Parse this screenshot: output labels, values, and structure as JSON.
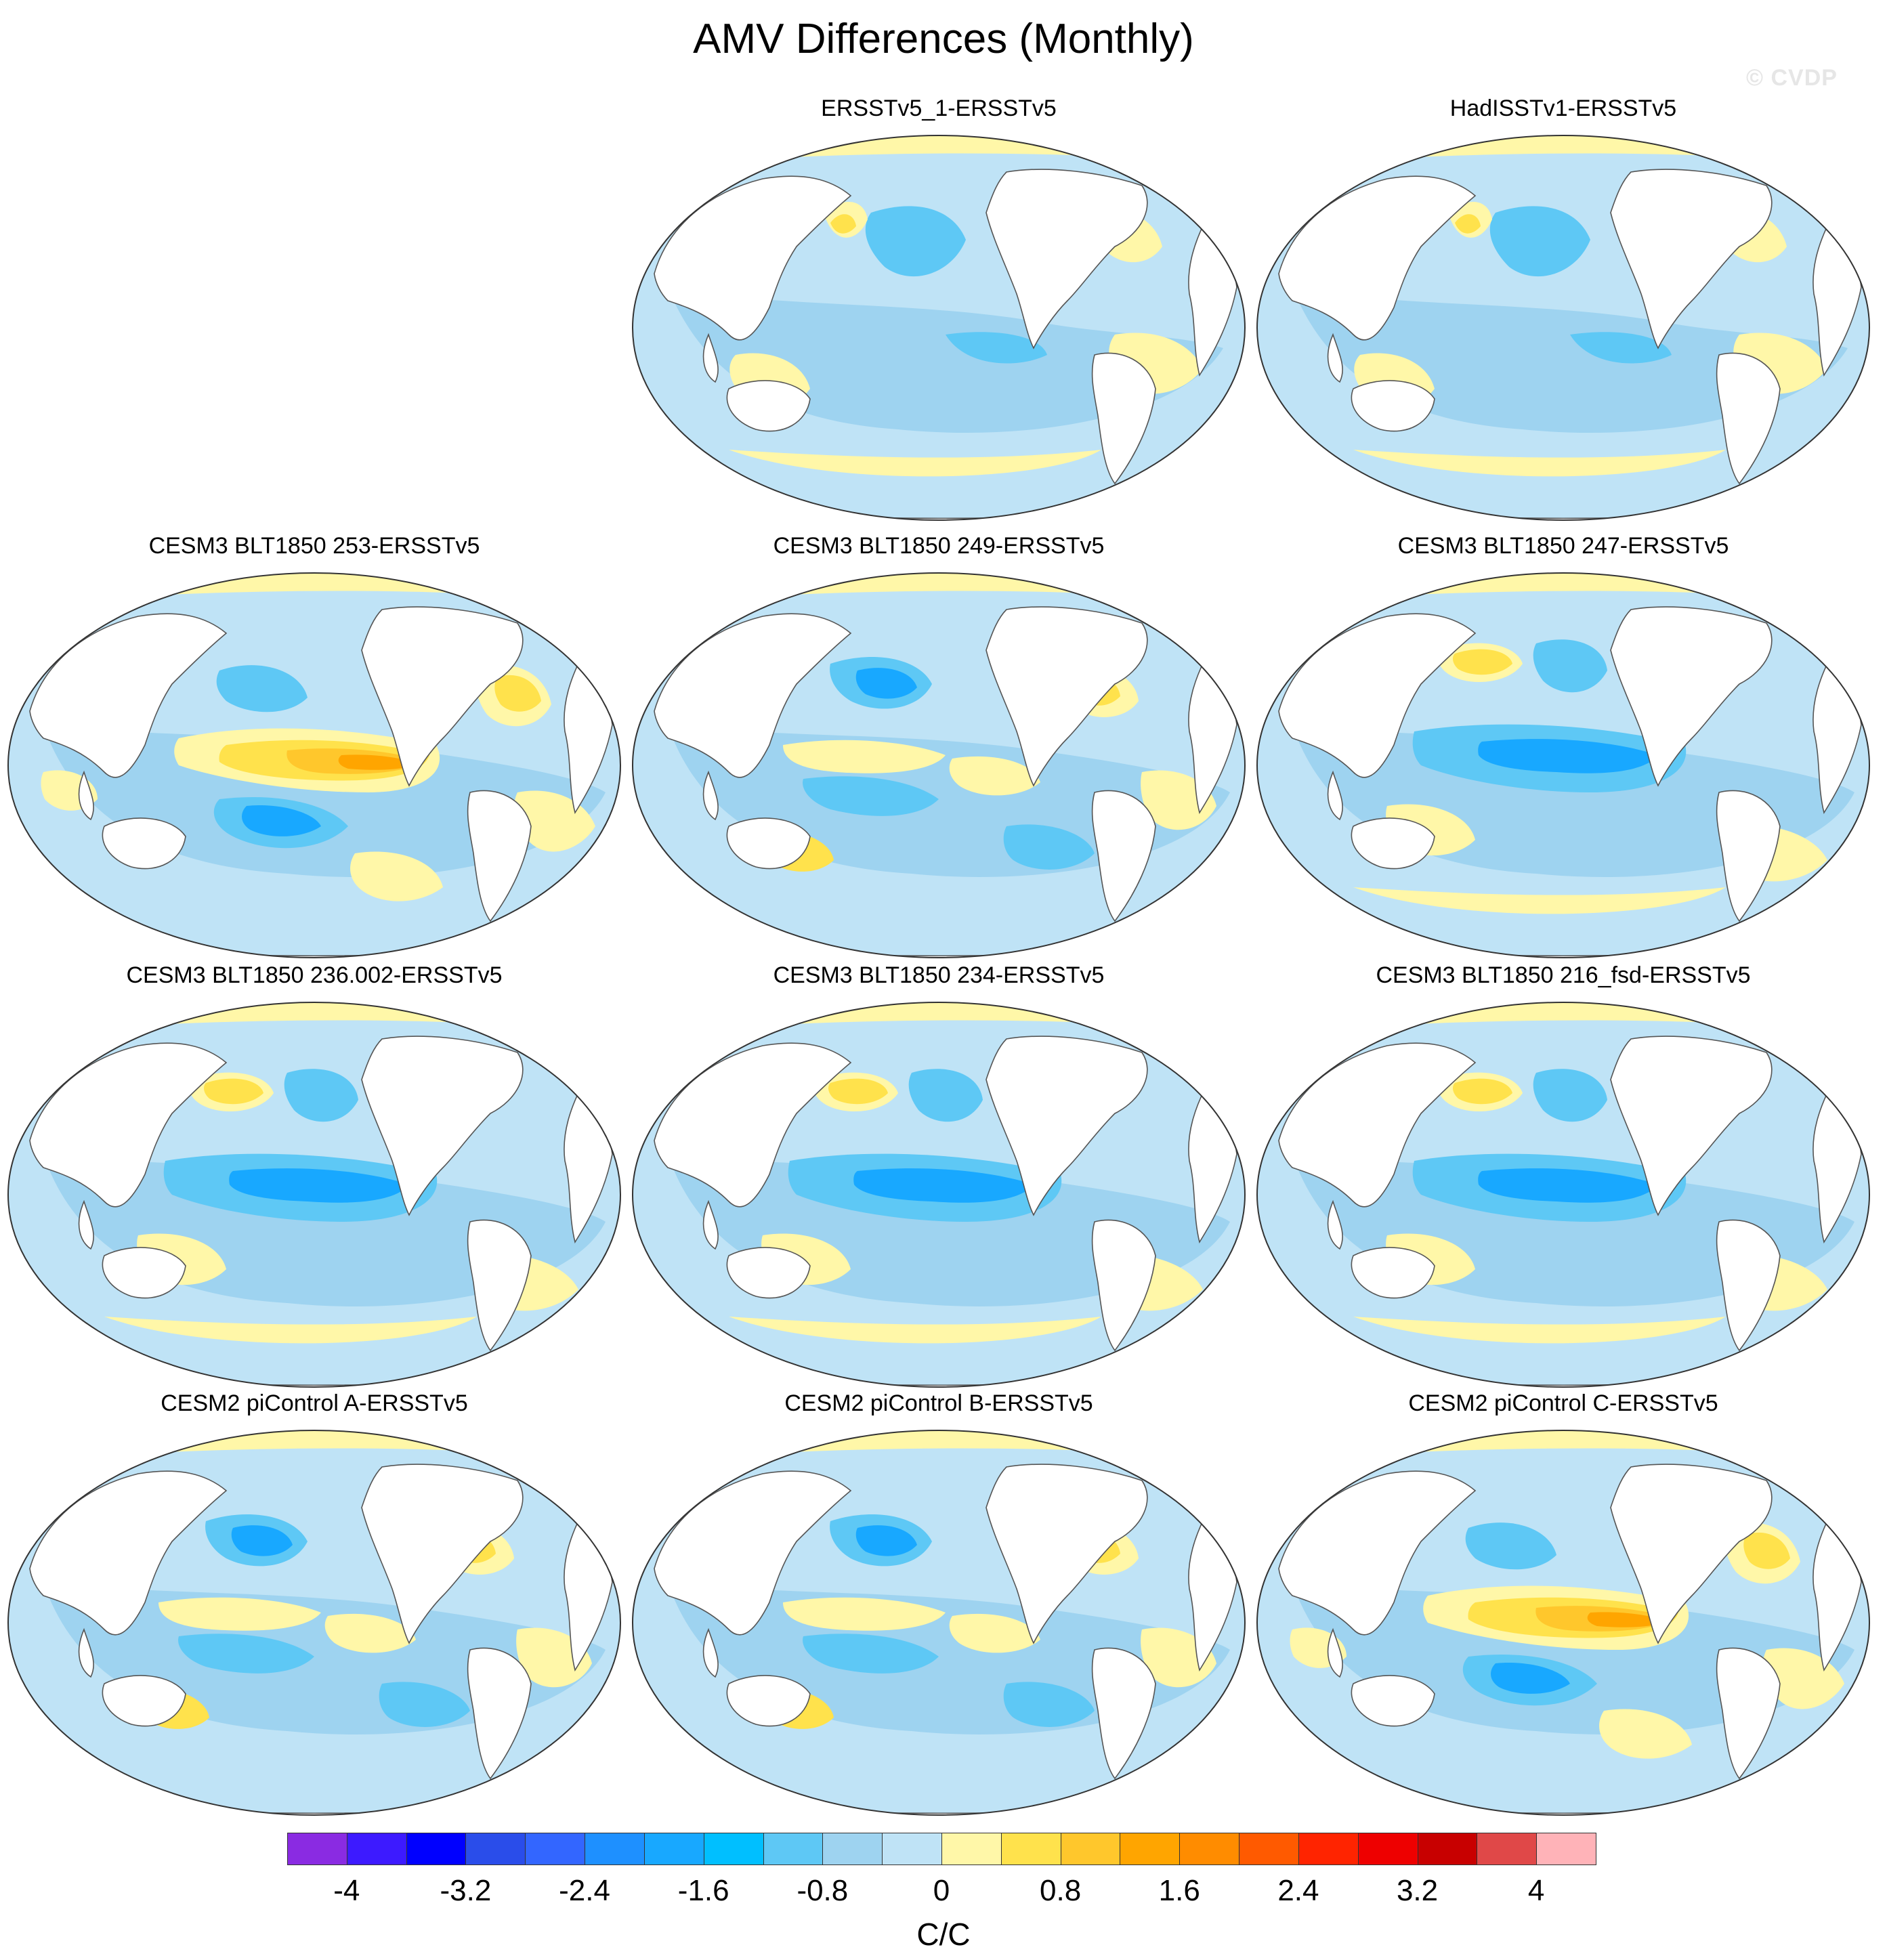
{
  "title": "AMV Differences (Monthly)",
  "watermark": "© CVDP",
  "panels": [
    {
      "title": "ERSSTv5_1-ERSSTv5",
      "row": 0,
      "col": 1,
      "regime": "mild"
    },
    {
      "title": "HadISSTv1-ERSSTv5",
      "row": 0,
      "col": 2,
      "regime": "mild"
    },
    {
      "title": "CESM3 BLT1850 253-ERSSTv5",
      "row": 1,
      "col": 0,
      "regime": "warm-pacific"
    },
    {
      "title": "CESM3 BLT1850 249-ERSSTv5",
      "row": 1,
      "col": 1,
      "regime": "mixed"
    },
    {
      "title": "CESM3 BLT1850 247-ERSSTv5",
      "row": 1,
      "col": 2,
      "regime": "cool-pacific"
    },
    {
      "title": "CESM3 BLT1850 236.002-ERSSTv5",
      "row": 2,
      "col": 0,
      "regime": "cool-pacific"
    },
    {
      "title": "CESM3 BLT1850 234-ERSSTv5",
      "row": 2,
      "col": 1,
      "regime": "cool-pacific"
    },
    {
      "title": "CESM3 BLT1850 216_fsd-ERSSTv5",
      "row": 2,
      "col": 2,
      "regime": "cool-pacific"
    },
    {
      "title": "CESM2 piControl A-ERSSTv5",
      "row": 3,
      "col": 0,
      "regime": "mixed"
    },
    {
      "title": "CESM2 piControl B-ERSSTv5",
      "row": 3,
      "col": 1,
      "regime": "mixed"
    },
    {
      "title": "CESM2 piControl C-ERSSTv5",
      "row": 3,
      "col": 2,
      "regime": "warm-pacific"
    }
  ],
  "colorbar": {
    "colors": [
      "#8a2be2",
      "#3d1aff",
      "#0000ff",
      "#2a4dea",
      "#3366ff",
      "#1e90ff",
      "#18a8ff",
      "#00bfff",
      "#5ec8f5",
      "#9ed3f0",
      "#bfe3f6",
      "#fff7a8",
      "#ffe24c",
      "#ffc72c",
      "#ffa500",
      "#ff8c00",
      "#ff5a00",
      "#ff2400",
      "#ee0000",
      "#c80000",
      "#e04848",
      "#ffb3b8"
    ],
    "tick_labels": [
      "-4",
      "-3.2",
      "-2.4",
      "-1.6",
      "-0.8",
      "0",
      "0.8",
      "1.6",
      "2.4",
      "3.2",
      "4"
    ],
    "unit": "C/C"
  },
  "fill_colors": {
    "ocean_base": "#bfe3f6",
    "light_cool": "#9ed3f0",
    "cool": "#5ec8f5",
    "strong_cool": "#18a8ff",
    "light_warm": "#fff7a8",
    "warm": "#ffe24c",
    "strong_warm": "#ffc72c",
    "hot": "#ffa500",
    "land": "#ffffff",
    "coast": "#555555"
  }
}
